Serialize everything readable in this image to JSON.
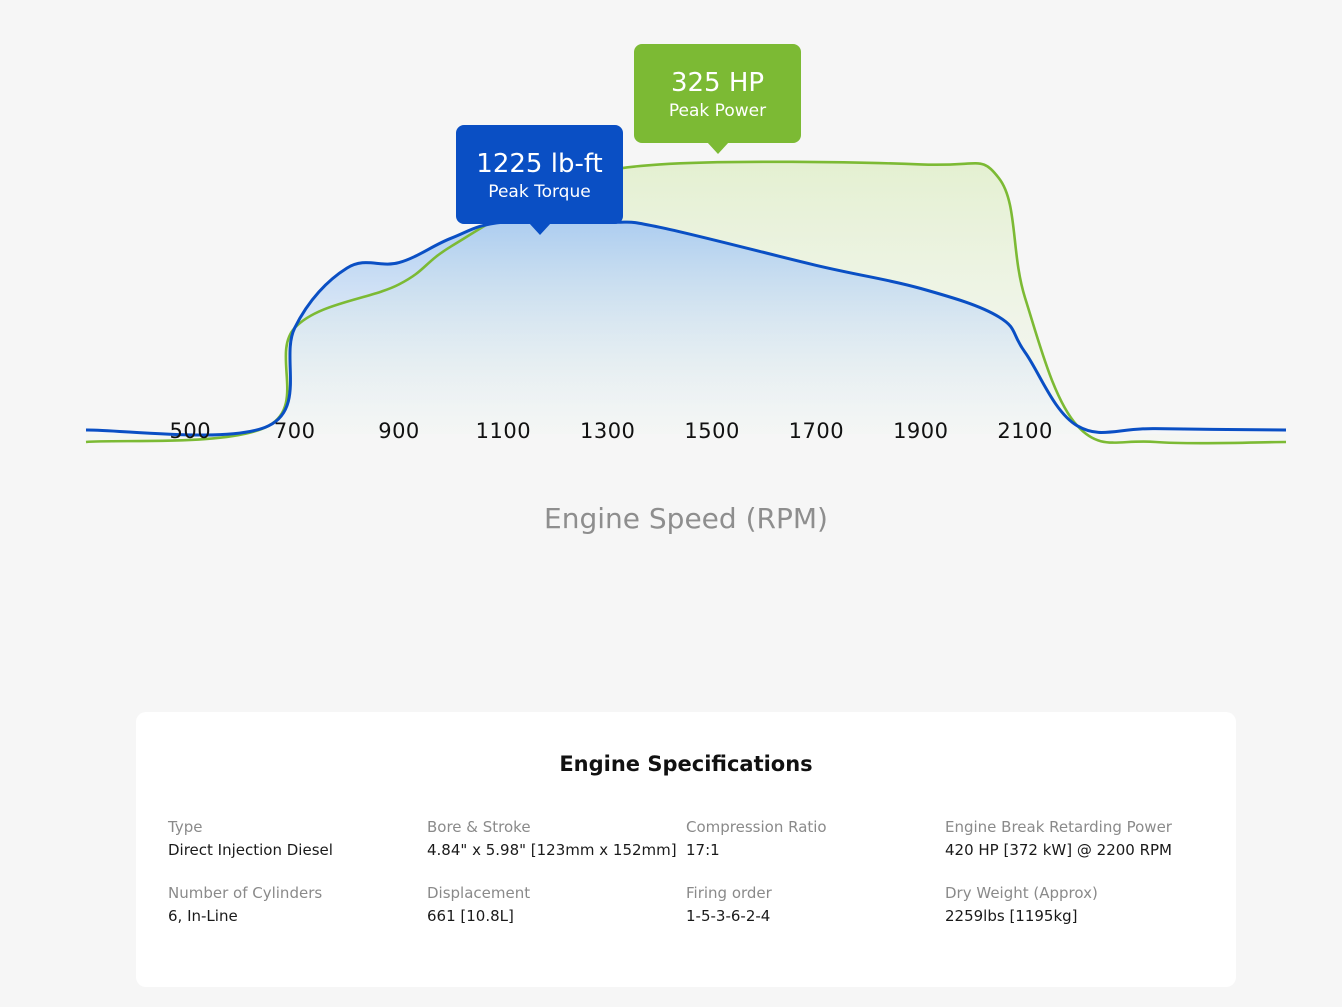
{
  "chart_data": {
    "type": "area",
    "x_axis": {
      "title": "Engine Speed (RPM)",
      "ticks": [
        500,
        700,
        900,
        1100,
        1300,
        1500,
        1700,
        1900,
        2100
      ],
      "range": [
        300,
        2600
      ]
    },
    "y_axis": {
      "visible": false,
      "range": [
        0,
        1
      ]
    },
    "grid": false,
    "series": [
      {
        "key": "power",
        "color": "#7cba34",
        "fill_color": "#e8f3d8",
        "x": [
          300,
          650,
          700,
          900,
          1000,
          1200,
          1400,
          1900,
          2050,
          2100,
          2200,
          2350,
          2600
        ],
        "values": [
          0.0,
          0.03,
          0.39,
          0.55,
          0.69,
          0.9,
          0.991,
          0.991,
          0.94,
          0.5,
          0.03,
          0.0,
          0.0
        ]
      },
      {
        "key": "torque",
        "color": "#0a4fc4",
        "fill_color": "#b7d4f4",
        "x": [
          300,
          650,
          700,
          800,
          900,
          1000,
          1100,
          1300,
          1400,
          1700,
          1900,
          2050,
          2100,
          2200,
          2350,
          2600
        ],
        "values": [
          0.0,
          0.03,
          0.39,
          0.61,
          0.63,
          0.72,
          0.779,
          0.779,
          0.76,
          0.62,
          0.535,
          0.43,
          0.3,
          0.03,
          0.02,
          0.0
        ]
      }
    ],
    "annotations": [
      {
        "series": "torque",
        "value": "1225 lb-ft",
        "label": "Peak Torque",
        "color": "#0a4fc4"
      },
      {
        "series": "power",
        "value": "325 HP",
        "label": "Peak Power",
        "color": "#7cba34"
      }
    ]
  },
  "specs": {
    "title": "Engine Specifications",
    "items": [
      {
        "label": "Type",
        "value": "Direct Injection Diesel"
      },
      {
        "label": "Bore & Stroke",
        "value": "4.84\" x 5.98\" [123mm x 152mm]"
      },
      {
        "label": "Compression Ratio",
        "value": "17:1"
      },
      {
        "label": "Engine Break Retarding Power",
        "value": "420 HP [372 kW] @ 2200 RPM"
      },
      {
        "label": "Number of Cylinders",
        "value": "6, In-Line"
      },
      {
        "label": "Displacement",
        "value": "661 [10.8L]"
      },
      {
        "label": "Firing order",
        "value": "1-5-3-6-2-4"
      },
      {
        "label": "Dry Weight (Approx)",
        "value": "2259lbs [1195kg]"
      }
    ]
  }
}
